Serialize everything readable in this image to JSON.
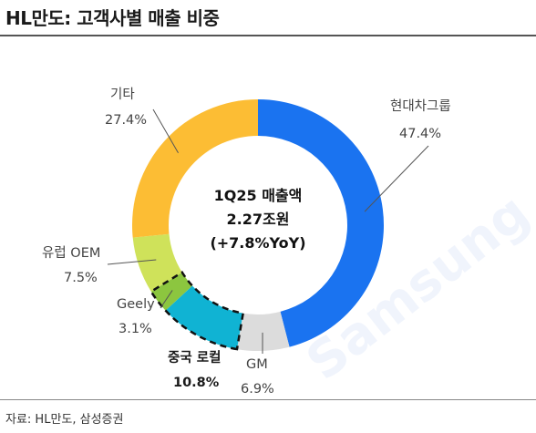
{
  "title": "HL만도: 고객사별 매출 비중",
  "source": "자료: HL만도, 삼성증권",
  "watermark": "Samsung",
  "chart_data": {
    "type": "pie",
    "donut": true,
    "center_text": [
      "1Q25 매출액",
      "2.27조원",
      "(+7.8%YoY)"
    ],
    "slices": [
      {
        "name": "현대차그룹",
        "value": 47.4,
        "label": "47.4%",
        "color": "#1a73f0"
      },
      {
        "name": "GM",
        "value": 6.9,
        "label": "6.9%",
        "color": "#dcdcdc"
      },
      {
        "name": "중국 로컬",
        "value": 10.8,
        "label": "10.8%",
        "color": "#10b3d3",
        "highlight": true
      },
      {
        "name": "Geely",
        "value": 3.1,
        "label": "3.1%",
        "color": "#8cc63f",
        "highlight": true
      },
      {
        "name": "유럽 OEM",
        "value": 7.5,
        "label": "7.5%",
        "color": "#cfe25a"
      },
      {
        "name": "기타",
        "value": 27.4,
        "label": "27.4%",
        "color": "#fcbd34"
      }
    ]
  }
}
